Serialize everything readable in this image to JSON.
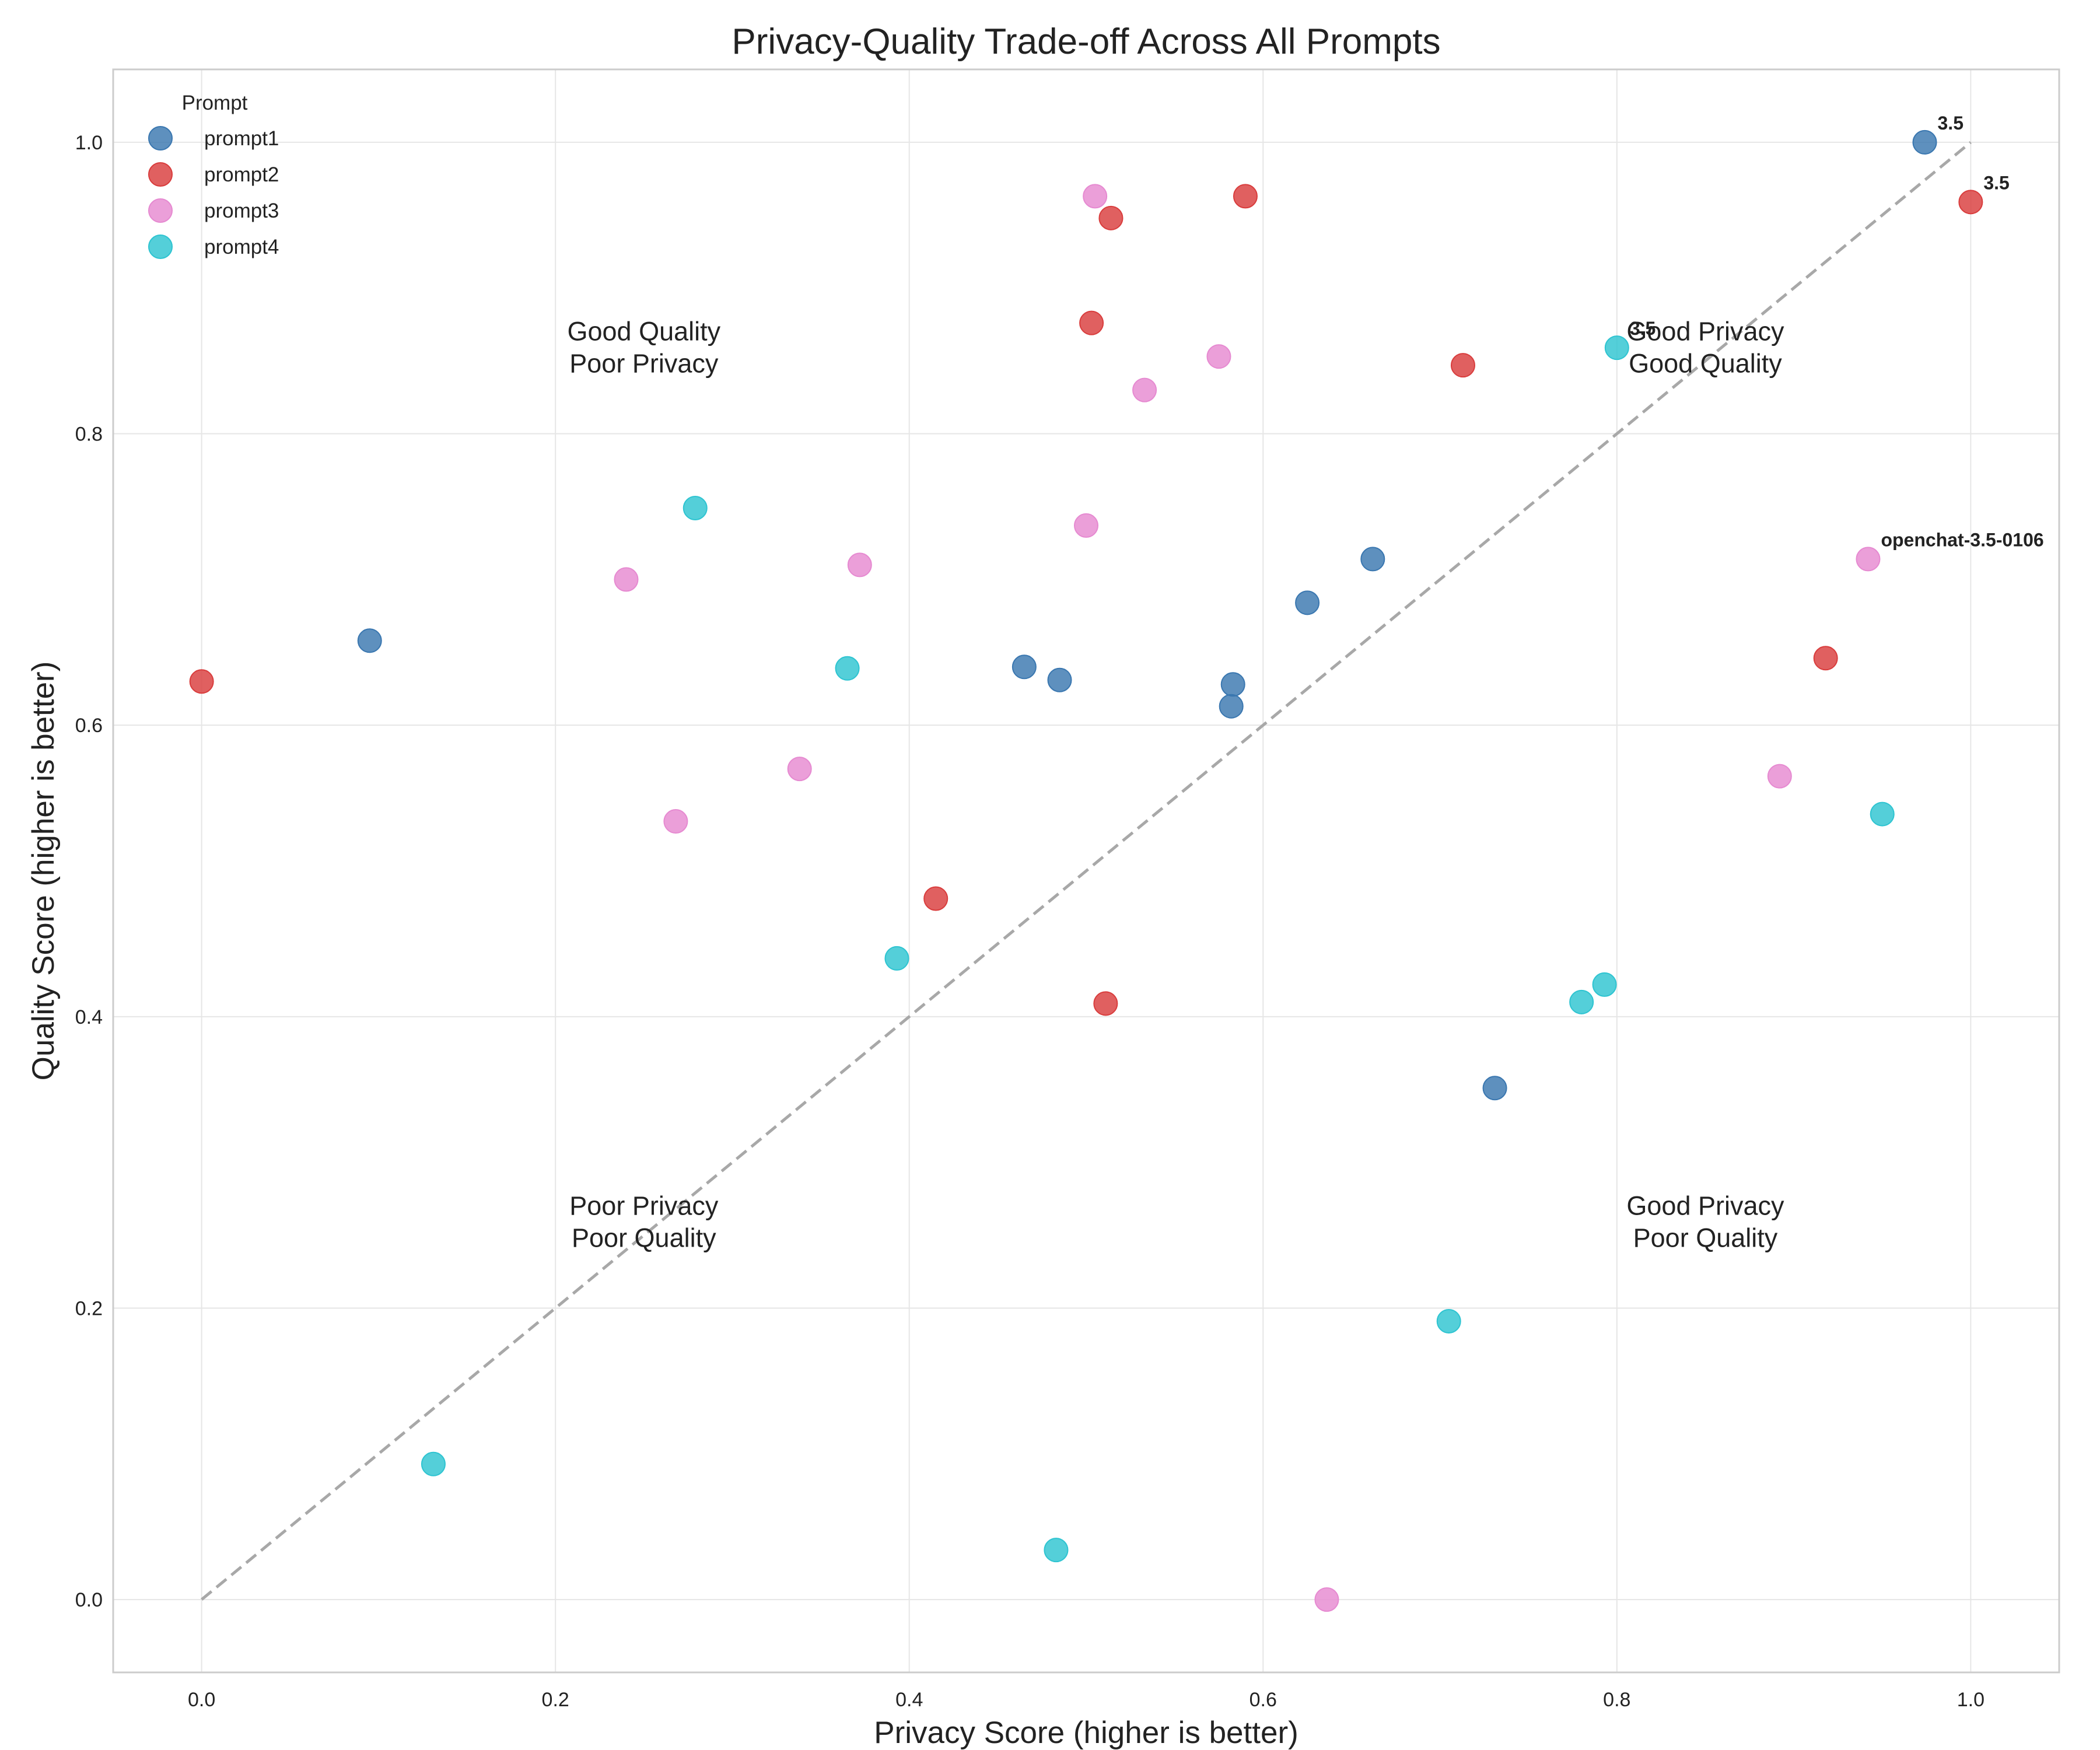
{
  "chart_data": {
    "type": "scatter",
    "title": "Privacy-Quality Trade-off Across All Prompts",
    "xlabel": "Privacy Score (higher is better)",
    "ylabel": "Quality Score (higher is better)",
    "xlim": [
      -0.05,
      1.05
    ],
    "ylim": [
      -0.05,
      1.05
    ],
    "xticks": [
      "0.0",
      "0.2",
      "0.4",
      "0.6",
      "0.8",
      "1.0"
    ],
    "yticks": [
      "0.0",
      "0.2",
      "0.4",
      "0.6",
      "0.8",
      "1.0"
    ],
    "grid": true,
    "legend": {
      "title": "Prompt",
      "placement": "top-left"
    },
    "diagonal_reference": {
      "from": [
        0,
        0
      ],
      "to": [
        1,
        1
      ],
      "style": "dashed",
      "color": "#a8a8a8"
    },
    "quadrant_labels": [
      {
        "lines": [
          "Good Quality",
          "Poor Privacy"
        ],
        "x": 0.25,
        "y": 0.86
      },
      {
        "lines": [
          "Good Privacy",
          "Good Quality"
        ],
        "x": 0.85,
        "y": 0.86
      },
      {
        "lines": [
          "Poor Privacy",
          "Poor Quality"
        ],
        "x": 0.25,
        "y": 0.26
      },
      {
        "lines": [
          "Good Privacy",
          "Poor Quality"
        ],
        "x": 0.85,
        "y": 0.26
      }
    ],
    "series": [
      {
        "name": "prompt1",
        "color": "#3a77b0",
        "points": [
          [
            0.095,
            0.658
          ],
          [
            0.465,
            0.64
          ],
          [
            0.485,
            0.631
          ],
          [
            0.583,
            0.628
          ],
          [
            0.582,
            0.613
          ],
          [
            0.625,
            0.684
          ],
          [
            0.662,
            0.714
          ],
          [
            0.731,
            0.351
          ],
          [
            0.974,
            1.0
          ]
        ]
      },
      {
        "name": "prompt2",
        "color": "#d93d3d",
        "points": [
          [
            0.0,
            0.63
          ],
          [
            0.415,
            0.481
          ],
          [
            0.511,
            0.409
          ],
          [
            0.503,
            0.876
          ],
          [
            0.514,
            0.948
          ],
          [
            0.59,
            0.963
          ],
          [
            0.713,
            0.847
          ],
          [
            0.918,
            0.646
          ],
          [
            1.0,
            0.959
          ]
        ]
      },
      {
        "name": "prompt3",
        "color": "#e68ad1",
        "points": [
          [
            0.24,
            0.7
          ],
          [
            0.268,
            0.534
          ],
          [
            0.338,
            0.57
          ],
          [
            0.372,
            0.71
          ],
          [
            0.5,
            0.737
          ],
          [
            0.505,
            0.963
          ],
          [
            0.533,
            0.83
          ],
          [
            0.575,
            0.853
          ],
          [
            0.636,
            0.0
          ],
          [
            0.892,
            0.565
          ],
          [
            0.942,
            0.714
          ]
        ]
      },
      {
        "name": "prompt4",
        "color": "#2ec4d1",
        "points": [
          [
            0.131,
            0.093
          ],
          [
            0.279,
            0.749
          ],
          [
            0.365,
            0.639
          ],
          [
            0.393,
            0.44
          ],
          [
            0.483,
            0.034
          ],
          [
            0.705,
            0.191
          ],
          [
            0.78,
            0.41
          ],
          [
            0.793,
            0.422
          ],
          [
            0.8,
            0.859
          ],
          [
            0.95,
            0.539
          ]
        ]
      }
    ],
    "annotations": [
      {
        "text": "3.5",
        "x": 0.974,
        "y": 1.0,
        "series": "prompt1"
      },
      {
        "text": "3.5",
        "x": 1.0,
        "y": 0.959,
        "series": "prompt2"
      },
      {
        "text": "3.5",
        "x": 0.8,
        "y": 0.859,
        "series": "prompt4"
      },
      {
        "text": "openchat-3.5-0106",
        "x": 0.942,
        "y": 0.714,
        "series": "prompt3"
      }
    ]
  }
}
